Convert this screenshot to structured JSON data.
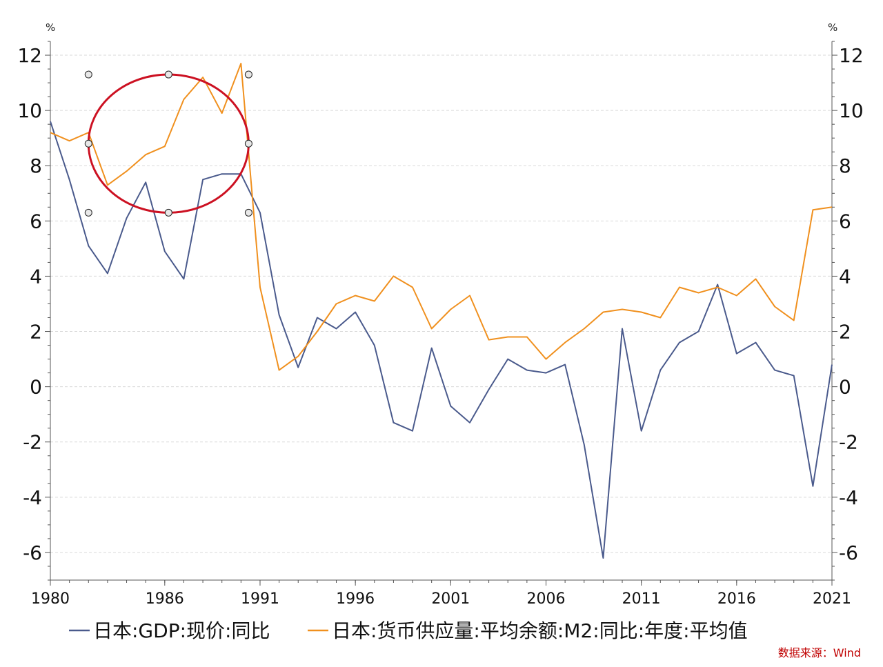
{
  "chart_data": {
    "type": "line",
    "left_unit": "%",
    "right_unit": "%",
    "x": [
      1980,
      1981,
      1982,
      1983,
      1984,
      1985,
      1986,
      1987,
      1988,
      1989,
      1990,
      1991,
      1992,
      1993,
      1994,
      1995,
      1996,
      1997,
      1998,
      1999,
      2000,
      2001,
      2002,
      2003,
      2004,
      2005,
      2006,
      2007,
      2008,
      2009,
      2010,
      2011,
      2012,
      2013,
      2014,
      2015,
      2016,
      2017,
      2018,
      2019,
      2020,
      2021
    ],
    "xlim": [
      1980,
      2021
    ],
    "xticks": [
      1980,
      1986,
      1991,
      1996,
      2001,
      2006,
      2011,
      2016,
      2021
    ],
    "xtick_labels": [
      "1980",
      "1986",
      "1991",
      "1996",
      "2001",
      "2006",
      "2011",
      "2016",
      "2021"
    ],
    "ylim": [
      -7,
      12.5
    ],
    "yticks": [
      -6,
      -4,
      -2,
      0,
      2,
      4,
      6,
      8,
      10,
      12
    ],
    "ytick_labels": [
      "-6",
      "-4",
      "-2",
      "0",
      "2",
      "4",
      "6",
      "8",
      "10",
      "12"
    ],
    "grid": true,
    "series": [
      {
        "name": "日本:GDP:现价:同比",
        "color": "#4a5a8c",
        "values": [
          9.6,
          7.5,
          5.1,
          4.1,
          6.1,
          7.4,
          4.9,
          3.9,
          7.5,
          7.7,
          7.7,
          6.3,
          2.6,
          0.7,
          2.5,
          2.1,
          2.7,
          1.5,
          -1.3,
          -1.6,
          1.4,
          -0.7,
          -1.3,
          -0.1,
          1.0,
          0.6,
          0.5,
          0.8,
          -2.1,
          -6.2,
          2.1,
          -1.6,
          0.6,
          1.6,
          2.0,
          3.7,
          1.2,
          1.6,
          0.6,
          0.4,
          -3.6,
          0.8
        ]
      },
      {
        "name": "日本:货币供应量:平均余额:M2:同比:年度:平均值",
        "color": "#f0901e",
        "values": [
          9.2,
          8.9,
          9.2,
          7.3,
          7.8,
          8.4,
          8.7,
          10.4,
          11.2,
          9.9,
          11.7,
          3.6,
          0.6,
          1.1,
          2.0,
          3.0,
          3.3,
          3.1,
          4.0,
          3.6,
          2.1,
          2.8,
          3.3,
          1.7,
          1.8,
          1.8,
          1.0,
          1.6,
          2.1,
          2.7,
          2.8,
          2.7,
          2.5,
          3.6,
          3.4,
          3.6,
          3.3,
          3.9,
          2.9,
          2.4,
          6.4,
          6.5
        ]
      }
    ],
    "annotation": {
      "shape": "ellipse",
      "color": "#cc1122",
      "x_center": 1986.2,
      "y_center": 8.8,
      "x_radius": 4.2,
      "y_radius": 2.5,
      "handles": true
    },
    "legend_position": "bottom",
    "source": "数据来源：Wind"
  }
}
